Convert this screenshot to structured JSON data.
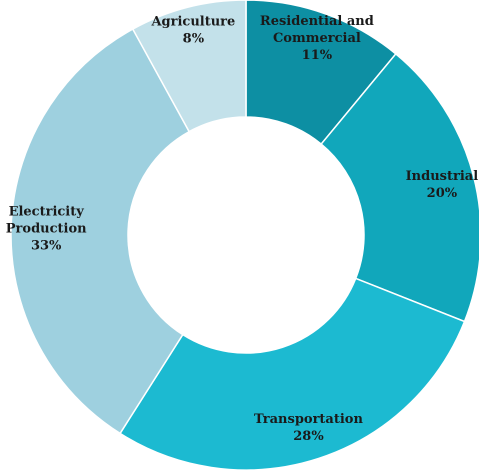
{
  "chart_data": {
    "type": "pie",
    "title": "",
    "categories": [
      "Residential and Commercial",
      "Industrial",
      "Transportation",
      "Electricity Production",
      "Agriculture"
    ],
    "values": [
      11,
      20,
      28,
      33,
      8
    ],
    "value_labels": [
      "11%",
      "20%",
      "28%",
      "33%",
      "8%"
    ],
    "label_lines": [
      [
        "Residential and",
        "Commercial"
      ],
      [
        "Industrial"
      ],
      [
        "Transportation"
      ],
      [
        "Electricity",
        "Production"
      ],
      [
        "Agriculture"
      ]
    ],
    "colors": [
      "#0d8fa3",
      "#11a7bb",
      "#1cbad1",
      "#9ed0df",
      "#c3e1ea"
    ],
    "donut": true,
    "legend": "none"
  }
}
